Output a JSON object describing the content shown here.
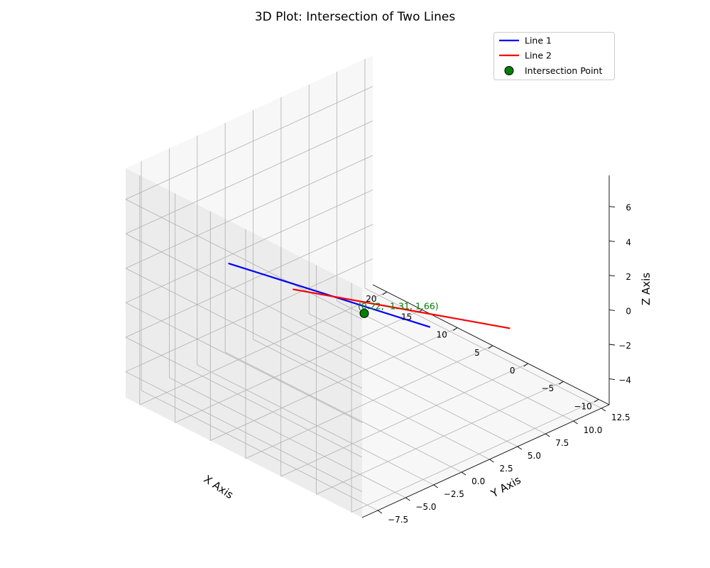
{
  "colors": {
    "line1": "#0000ff",
    "line2": "#ff0000",
    "point_fill": "#008000",
    "point_edge": "#000000",
    "annotation": "#008000",
    "pane_light": "#f7f7f7",
    "pane_mid": "#f2f2f2",
    "pane_dark": "#ececec",
    "grid": "#b0b0b0"
  },
  "chart_data": {
    "type": "line3d",
    "title": "3D Plot: Intersection of Two Lines",
    "xlabel": "X Axis",
    "ylabel": "Y Axis",
    "zlabel": "Z Axis",
    "xlim": [
      -11.5,
      22.0
    ],
    "ylim": [
      -8.9,
      13.2
    ],
    "zlim": [
      -5.5,
      7.8
    ],
    "xticks": [
      -10,
      -5,
      0,
      5,
      10,
      15,
      20
    ],
    "yticks": [
      -7.5,
      -5.0,
      -2.5,
      0.0,
      2.5,
      5.0,
      7.5,
      10.0,
      12.5
    ],
    "zticks": [
      -4,
      -2,
      0,
      2,
      4,
      6
    ],
    "xtick_labels": [
      "−10",
      "−5",
      "0",
      "5",
      "10",
      "15",
      "20"
    ],
    "ytick_labels": [
      "−7.5",
      "−5.0",
      "−2.5",
      "0.0",
      "2.5",
      "5.0",
      "7.5",
      "10.0",
      "12.5"
    ],
    "ztick_labels": [
      "−4",
      "−2",
      "0",
      "2",
      "4",
      "6"
    ],
    "grid": true,
    "legend_position": "top-right",
    "series": [
      {
        "name": "Line 1",
        "kind": "line",
        "points": [
          [
            20.2,
            -0.8,
            0.25
          ],
          [
            -9.8,
            -1.8,
            3.1
          ]
        ]
      },
      {
        "name": "Line 2",
        "kind": "line",
        "points": [
          [
            0.1,
            11.6,
            -3.0
          ],
          [
            0.3,
            -7.6,
            4.9
          ]
        ]
      },
      {
        "name": "Intersection Point",
        "kind": "point",
        "points": [
          [
            0.22,
            -1.31,
            1.66
          ]
        ]
      }
    ],
    "annotation": {
      "text": "(0.22, -1.31, 1.66)",
      "at": [
        0.22,
        -1.31,
        1.66
      ]
    }
  }
}
